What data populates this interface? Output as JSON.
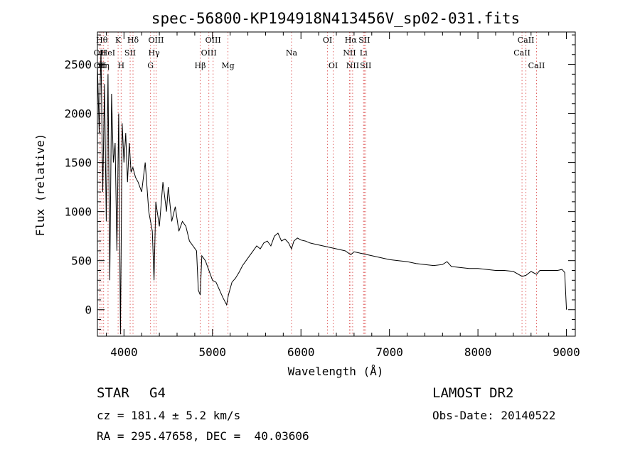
{
  "chart_data": {
    "type": "line",
    "title": "spec-56800-KP194918N413456V_sp02-031.fits",
    "xlabel": "Wavelength (Å)",
    "ylabel": "Flux (relative)",
    "xlim": [
      3700,
      9100
    ],
    "ylim": [
      -270,
      2830
    ],
    "x_ticks": [
      4000,
      5000,
      6000,
      7000,
      8000,
      9000
    ],
    "y_ticks": [
      0,
      500,
      1000,
      1500,
      2000,
      2500
    ],
    "grid": false,
    "series": [
      {
        "x": [
          3700,
          3720,
          3740,
          3760,
          3780,
          3800,
          3820,
          3840,
          3860,
          3880,
          3900,
          3920,
          3940,
          3960,
          3980,
          4000,
          4020,
          4040,
          4060,
          4080,
          4100,
          4130,
          4160,
          4200,
          4240,
          4280,
          4320,
          4340,
          4360,
          4400,
          4440,
          4480,
          4500,
          4540,
          4580,
          4620,
          4660,
          4700,
          4740,
          4780,
          4820,
          4840,
          4862,
          4880,
          4920,
          4960,
          5000,
          5040,
          5080,
          5120,
          5160,
          5180,
          5220,
          5260,
          5300,
          5340,
          5380,
          5420,
          5460,
          5500,
          5540,
          5580,
          5620,
          5660,
          5700,
          5740,
          5780,
          5820,
          5860,
          5893,
          5920,
          5960,
          6000,
          6050,
          6100,
          6150,
          6200,
          6250,
          6300,
          6350,
          6400,
          6450,
          6500,
          6563,
          6600,
          6650,
          6700,
          6750,
          6800,
          6900,
          7000,
          7100,
          7200,
          7300,
          7400,
          7500,
          7600,
          7650,
          7700,
          7800,
          7900,
          8000,
          8100,
          8200,
          8300,
          8400,
          8498,
          8542,
          8600,
          8662,
          8700,
          8800,
          8900,
          8950,
          8980,
          9000
        ],
        "y": [
          2500,
          1800,
          2650,
          1200,
          2300,
          900,
          2400,
          300,
          2200,
          1500,
          1700,
          600,
          2000,
          -250,
          1900,
          1500,
          1800,
          1300,
          1700,
          1400,
          1450,
          1350,
          1300,
          1200,
          1500,
          1000,
          800,
          300,
          1100,
          850,
          1300,
          1000,
          1250,
          900,
          1050,
          800,
          900,
          850,
          700,
          650,
          600,
          200,
          150,
          550,
          500,
          400,
          300,
          280,
          200,
          120,
          50,
          150,
          280,
          320,
          380,
          450,
          500,
          550,
          600,
          650,
          620,
          680,
          700,
          650,
          750,
          780,
          700,
          720,
          680,
          620,
          700,
          730,
          710,
          700,
          680,
          670,
          660,
          650,
          640,
          630,
          620,
          610,
          600,
          560,
          590,
          580,
          570,
          560,
          550,
          530,
          510,
          500,
          490,
          470,
          460,
          450,
          460,
          490,
          440,
          430,
          420,
          420,
          410,
          400,
          400,
          390,
          340,
          350,
          390,
          360,
          400,
          400,
          400,
          410,
          380,
          0
        ]
      }
    ],
    "lines": [
      {
        "wavelength": 3750,
        "label": "Hθ",
        "row": 0
      },
      {
        "wavelength": 3728,
        "label": "OII",
        "row": 1
      },
      {
        "wavelength": 3730,
        "label": "OII",
        "row": 2
      },
      {
        "wavelength": 3770,
        "label": "Hη",
        "row": 2
      },
      {
        "wavelength": 3820,
        "label": "HeI",
        "row": 1
      },
      {
        "wavelength": 3934,
        "label": "K",
        "row": 0
      },
      {
        "wavelength": 3968,
        "label": "H",
        "row": 2
      },
      {
        "wavelength": 4070,
        "label": "SII",
        "row": 1
      },
      {
        "wavelength": 4102,
        "label": "Hδ",
        "row": 0
      },
      {
        "wavelength": 4300,
        "label": "G",
        "row": 2
      },
      {
        "wavelength": 4340,
        "label": "Hγ",
        "row": 1
      },
      {
        "wavelength": 4363,
        "label": "OIII",
        "row": 0
      },
      {
        "wavelength": 4861,
        "label": "Hβ",
        "row": 2
      },
      {
        "wavelength": 4959,
        "label": "OIII",
        "row": 1
      },
      {
        "wavelength": 5007,
        "label": "OIII",
        "row": 0
      },
      {
        "wavelength": 5175,
        "label": "Mg",
        "row": 2
      },
      {
        "wavelength": 5893,
        "label": "Na",
        "row": 1
      },
      {
        "wavelength": 6300,
        "label": "OI",
        "row": 0
      },
      {
        "wavelength": 6364,
        "label": "OI",
        "row": 2
      },
      {
        "wavelength": 6548,
        "label": "NII",
        "row": 1
      },
      {
        "wavelength": 6563,
        "label": "Hα",
        "row": 0
      },
      {
        "wavelength": 6584,
        "label": "NII",
        "row": 2
      },
      {
        "wavelength": 6707,
        "label": "Li",
        "row": 1
      },
      {
        "wavelength": 6716,
        "label": "SII",
        "row": 0
      },
      {
        "wavelength": 6731,
        "label": "SII",
        "row": 2
      },
      {
        "wavelength": 8498,
        "label": "CaII",
        "row": 1
      },
      {
        "wavelength": 8542,
        "label": "CaII",
        "row": 0
      },
      {
        "wavelength": 8662,
        "label": "CaII",
        "row": 2
      }
    ],
    "line_color": "#e06060"
  },
  "info": {
    "object_class": "STAR",
    "subclass": "G4",
    "survey": "LAMOST DR2",
    "cz": "cz = 181.4 ± 5.2 km/s",
    "obs_date": "Obs-Date: 20140522",
    "coords": "RA = 295.47658, DEC =  40.03606"
  }
}
